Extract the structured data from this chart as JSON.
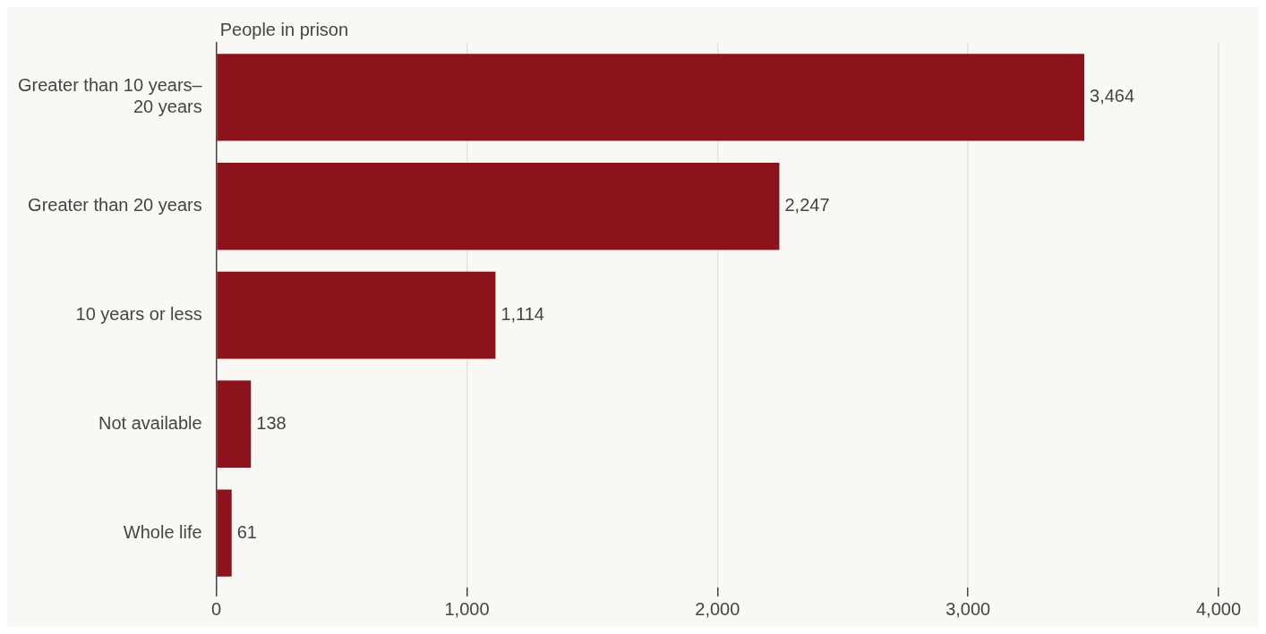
{
  "chart_data": {
    "type": "bar",
    "orientation": "horizontal",
    "xlabel": "People in prison",
    "categories": [
      "Greater than 10 years–20 years",
      "Greater than 20 years",
      "10 years or less",
      "Not available",
      "Whole life"
    ],
    "values": [
      3464,
      2247,
      1114,
      138,
      61
    ],
    "value_labels": [
      "3,464",
      "2,247",
      "1,114",
      "138",
      "61"
    ],
    "color": "#8c131c",
    "xlim": [
      0,
      4000
    ],
    "xticks": [
      0,
      {
        "value": 1000,
        "label": "1,000"
      },
      {
        "value": 2000,
        "label": "2,000"
      },
      {
        "value": 3000,
        "label": "3,000"
      },
      {
        "value": 4000,
        "label": "4,000"
      }
    ],
    "grid": "x",
    "legend": false
  }
}
